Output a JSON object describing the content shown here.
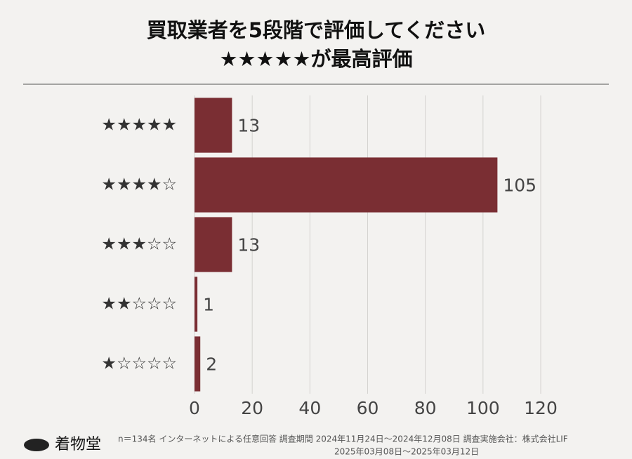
{
  "chart_data": {
    "type": "barh",
    "title": "買取業者を5段階で評価してください",
    "subtitle": "★★★★★が最高評価",
    "categories": [
      "★★★★★",
      "★★★★☆",
      "★★★☆☆",
      "★★☆☆☆",
      "★☆☆☆☆"
    ],
    "values": [
      13,
      105,
      13,
      1,
      2
    ],
    "color": "#7a2e33",
    "xlim": [
      0,
      120
    ],
    "xticks": [
      0,
      20,
      40,
      60,
      80,
      100,
      120
    ],
    "grid": true,
    "notes": [
      "n＝134名 インターネットによる任意回答 調査期間 2024年11月24日〜2024年12月08日 調査実施会社：株式会社LIF",
      "2025年03月08日〜2025年03月12日"
    ],
    "logo": "着物堂"
  }
}
